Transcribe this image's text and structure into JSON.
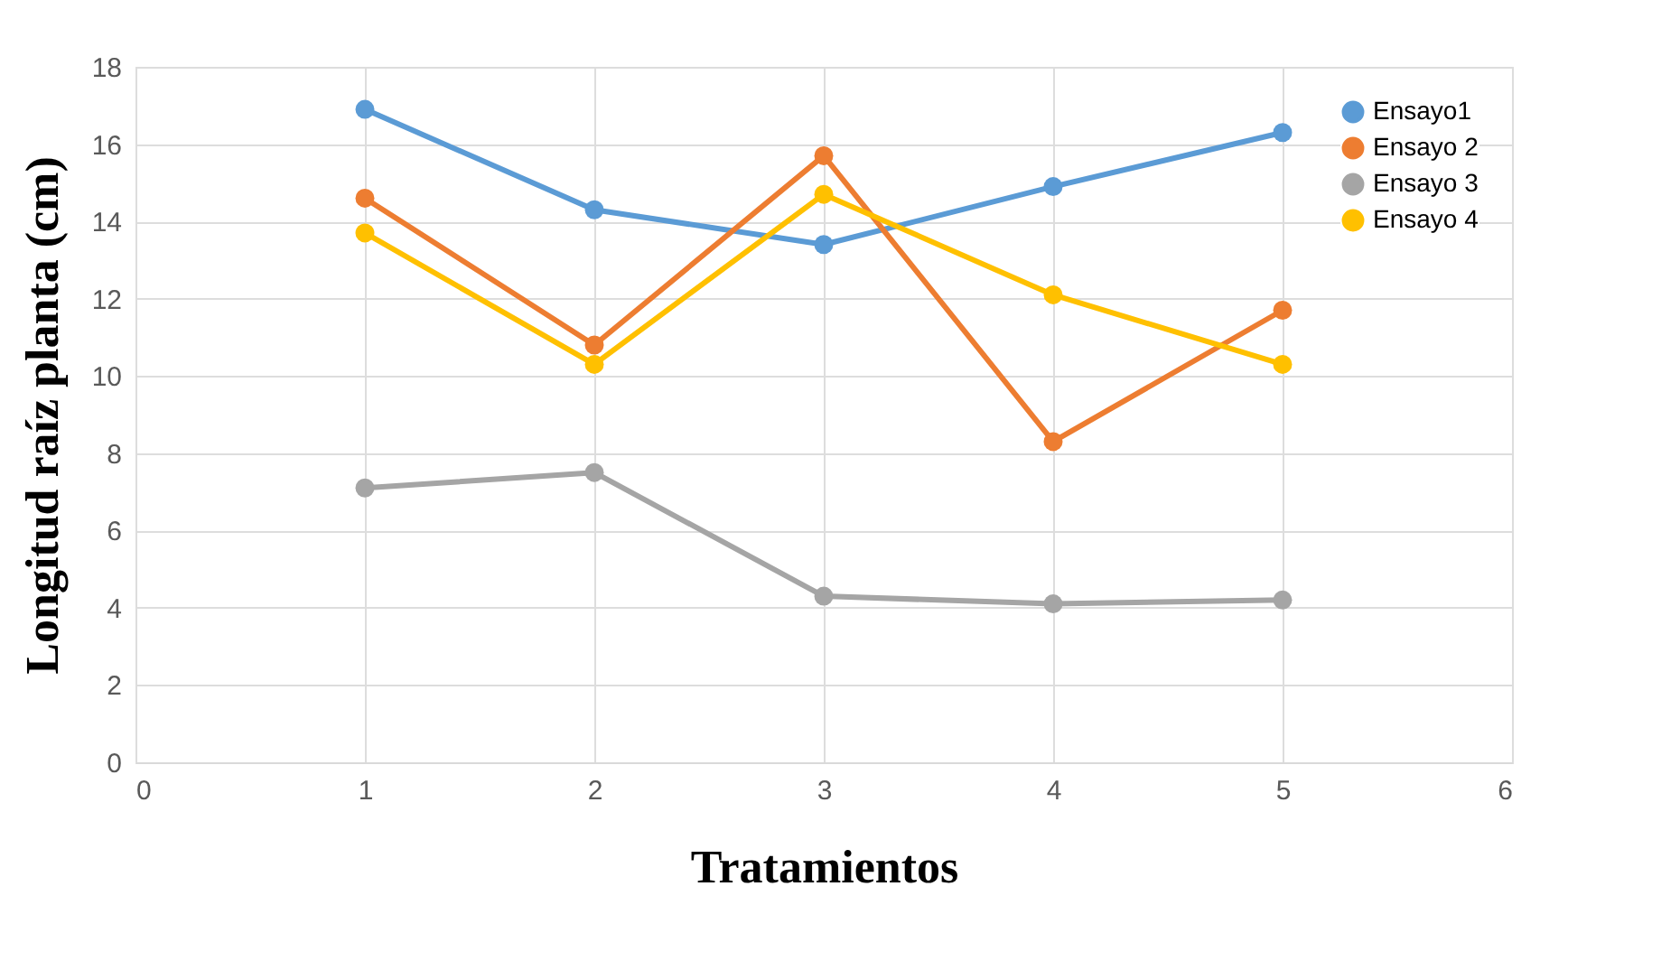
{
  "chart_data": {
    "type": "line",
    "xlabel": "Tratamientos",
    "ylabel": "Longitud raíz planta (cm)",
    "x": [
      1,
      2,
      3,
      4,
      5
    ],
    "series": [
      {
        "name": "Ensayo1",
        "color": "#5b9bd5",
        "values": [
          16.9,
          14.3,
          13.4,
          14.9,
          16.3
        ]
      },
      {
        "name": "Ensayo 2",
        "color": "#ed7d31",
        "values": [
          14.6,
          10.8,
          15.7,
          8.3,
          11.7
        ]
      },
      {
        "name": "Ensayo 3",
        "color": "#a5a5a5",
        "values": [
          7.1,
          7.5,
          4.3,
          4.1,
          4.2
        ]
      },
      {
        "name": "Ensayo 4",
        "color": "#ffc000",
        "values": [
          13.7,
          10.3,
          14.7,
          12.1,
          10.3
        ]
      }
    ],
    "xlim": [
      0,
      6
    ],
    "xticks": [
      0,
      1,
      2,
      3,
      4,
      5,
      6
    ],
    "ylim": [
      0,
      18
    ],
    "yticks": [
      0,
      2,
      4,
      6,
      8,
      10,
      12,
      14,
      16,
      18
    ],
    "grid": true,
    "legend": "top right",
    "marker": "circle",
    "line_style": "solid"
  }
}
